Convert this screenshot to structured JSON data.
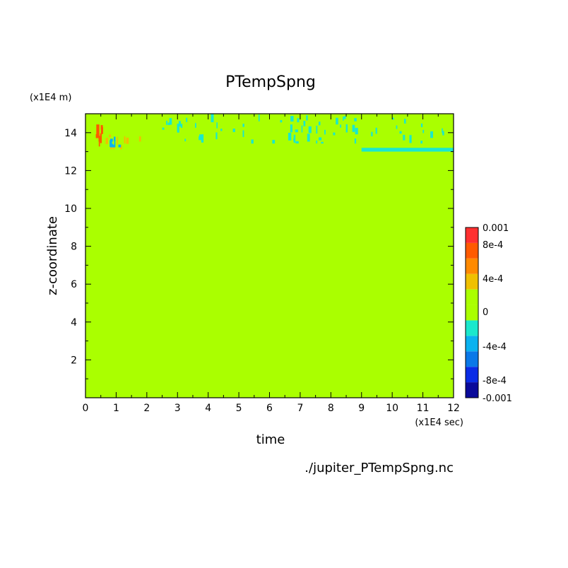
{
  "chart_data": {
    "type": "heatmap",
    "title": "PTempSpng",
    "xlabel": "time",
    "ylabel": "z-coordinate",
    "x_unit": "(x1E4 sec)",
    "y_unit": "(x1E4 m)",
    "xlim": [
      0,
      12
    ],
    "ylim": [
      0,
      15
    ],
    "x_ticks": [
      0,
      1,
      2,
      3,
      4,
      5,
      6,
      7,
      8,
      9,
      10,
      11,
      12
    ],
    "y_ticks": [
      2,
      4,
      6,
      8,
      10,
      12,
      14
    ],
    "background_value": 0,
    "features": [
      {
        "kind": "positive",
        "x": [
          0.3,
          0.6
        ],
        "y": [
          13.2,
          14.5
        ],
        "value": 0.0008
      },
      {
        "kind": "positive",
        "x": [
          0.6,
          1.8
        ],
        "y": [
          13.2,
          14.1
        ],
        "value": 0.0004
      },
      {
        "kind": "negative",
        "x": [
          0.7,
          1.1
        ],
        "y": [
          13.3,
          13.8
        ],
        "value": -0.0004
      },
      {
        "kind": "negative",
        "x": [
          2.5,
          12
        ],
        "y": [
          13.5,
          15
        ],
        "value": -0.0002
      },
      {
        "kind": "negative",
        "x": [
          9.0,
          12
        ],
        "y": [
          13.0,
          13.2
        ],
        "value": -0.0002
      }
    ],
    "colorbar": {
      "tick_labels": [
        "0.001",
        "8e-4",
        "4e-4",
        "0",
        "-4e-4",
        "-8e-4",
        "-0.001"
      ],
      "levels": [
        {
          "value": -0.001,
          "color": "#0a0a9a"
        },
        {
          "value": -0.0008,
          "color": "#0a2ce6"
        },
        {
          "value": -0.0006,
          "color": "#0a78e8"
        },
        {
          "value": -0.0004,
          "color": "#0ab2f0"
        },
        {
          "value": -0.0002,
          "color": "#1ae8cc"
        },
        {
          "value": 0,
          "color": "#aaff00"
        },
        {
          "value": 0.0002,
          "color": "#aaff00"
        },
        {
          "value": 0.0004,
          "color": "#f0c000"
        },
        {
          "value": 0.0006,
          "color": "#ff8a00"
        },
        {
          "value": 0.0008,
          "color": "#ff5a00"
        },
        {
          "value": 0.001,
          "color": "#ff3030"
        }
      ]
    }
  },
  "caption": {
    "source_file": "./jupiter_PTempSpng.nc"
  }
}
